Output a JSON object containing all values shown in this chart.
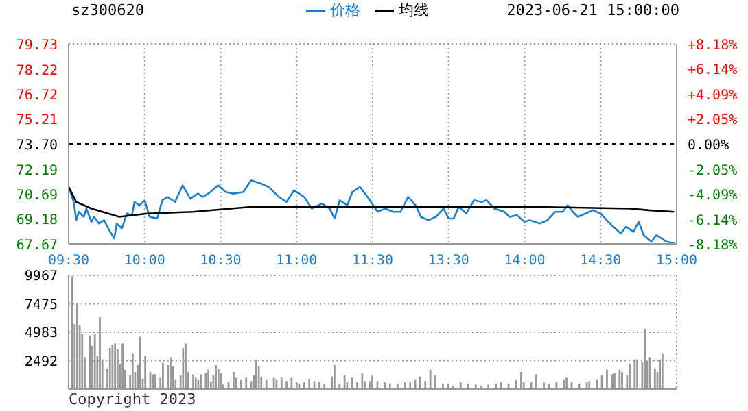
{
  "chart_data": [
    {
      "type": "line",
      "title": "sz300620",
      "annotations": [
        "2023-06-21 15:00:00"
      ],
      "legend": "top",
      "grid": true,
      "marker": "none",
      "categories": [
        "09:30",
        null,
        null,
        null,
        null,
        null,
        null,
        null,
        null,
        null,
        null,
        null,
        null,
        null,
        null,
        null,
        null,
        null,
        null,
        null,
        null,
        null,
        null,
        null,
        null,
        null,
        null,
        null,
        null,
        null,
        "10:00",
        null,
        null,
        null,
        null,
        null,
        null,
        null,
        null,
        null,
        null,
        null,
        null,
        null,
        null,
        null,
        null,
        null,
        null,
        null,
        null,
        null,
        null,
        null,
        null,
        null,
        null,
        null,
        null,
        null,
        "10:30",
        null,
        null,
        null,
        null,
        null,
        null,
        null,
        null,
        null,
        null,
        null,
        null,
        null,
        null,
        null,
        null,
        null,
        null,
        null,
        null,
        null,
        null,
        null,
        null,
        null,
        null,
        null,
        null,
        null,
        "11:00",
        null,
        null,
        null,
        null,
        null,
        null,
        null,
        null,
        null,
        null,
        null,
        null,
        null,
        null,
        null,
        null,
        null,
        null,
        null,
        null,
        null,
        null,
        null,
        null,
        null,
        null,
        null,
        null,
        null,
        "11:30",
        null,
        null,
        null,
        null,
        null,
        null,
        null,
        null,
        null,
        null,
        null,
        null,
        null,
        null,
        null,
        null,
        null,
        null,
        null,
        null,
        null,
        null,
        null,
        null,
        null,
        null,
        null,
        null,
        null,
        "13:30",
        null,
        null,
        null,
        null,
        null,
        null,
        null,
        null,
        null,
        null,
        null,
        null,
        null,
        null,
        null,
        null,
        null,
        null,
        null,
        null,
        null,
        null,
        null,
        null,
        null,
        null,
        null,
        null,
        null,
        "14:00",
        null,
        null,
        null,
        null,
        null,
        null,
        null,
        null,
        null,
        null,
        null,
        null,
        null,
        null,
        null,
        null,
        null,
        null,
        null,
        null,
        null,
        null,
        null,
        null,
        null,
        null,
        null,
        null,
        null,
        "14:30",
        null,
        null,
        null,
        null,
        null,
        null,
        null,
        null,
        null,
        null,
        null,
        null,
        null,
        null,
        null,
        null,
        null,
        null,
        null,
        null,
        null,
        null,
        null,
        null,
        null,
        null,
        null,
        null,
        null,
        "15:00"
      ],
      "ylim": [
        67.67,
        79.73
      ],
      "yticks": [
        67.67,
        69.18,
        70.69,
        72.19,
        {
          "value": 73.7,
          "label": "73.70"
        },
        75.21,
        76.72,
        78.22,
        79.73
      ],
      "y2lim": [
        -8.18,
        8.18
      ],
      "y2ticks": [
        {
          "value": -8.18,
          "label": "-8.18%"
        },
        {
          "value": -6.14,
          "label": "-6.14%"
        },
        {
          "value": -4.09,
          "label": "-4.09%"
        },
        {
          "value": -2.05,
          "label": "-2.05%"
        },
        {
          "value": 0,
          "label": "0.00%"
        },
        {
          "value": 2.05,
          "label": "+2.05%"
        },
        {
          "value": 4.09,
          "label": "+4.09%"
        },
        {
          "value": 6.14,
          "label": "+6.14%"
        },
        {
          "value": 8.18,
          "label": "+8.18%"
        }
      ],
      "ref_lines": [
        {
          "axis": "y",
          "value": 73.7,
          "color": "#000000",
          "line_style": "dashed"
        }
      ],
      "series": [
        {
          "name": "价格",
          "color": "#1a7fcf",
          "values": [
            71.1,
            null,
            70.2,
            69.1,
            69.6,
            null,
            69.3,
            69.8,
            null,
            69.0,
            69.3,
            null,
            68.9,
            null,
            69.1,
            null,
            68.5,
            null,
            68.0,
            68.9,
            null,
            68.6,
            null,
            69.5,
            null,
            69.4,
            70.2,
            null,
            70.0,
            null,
            70.3,
            null,
            69.3,
            null,
            null,
            69.2,
            null,
            70.3,
            null,
            70.5,
            null,
            null,
            70.2,
            null,
            null,
            71.2,
            null,
            null,
            70.4,
            null,
            null,
            70.7,
            null,
            70.5,
            null,
            null,
            70.8,
            null,
            null,
            71.2,
            null,
            null,
            70.8,
            null,
            null,
            70.7,
            null,
            null,
            null,
            70.8,
            null,
            null,
            71.5,
            null,
            null,
            null,
            71.3,
            null,
            null,
            71.1,
            null,
            null,
            null,
            70.5,
            null,
            null,
            70.2,
            null,
            null,
            70.9,
            null,
            null,
            null,
            70.5,
            null,
            null,
            69.8,
            null,
            null,
            null,
            70.1,
            null,
            null,
            69.8,
            null,
            69.2,
            null,
            70.3,
            null,
            null,
            70.0,
            null,
            70.8,
            null,
            null,
            71.1,
            null,
            null,
            70.5,
            null,
            null,
            null,
            69.6,
            null,
            null,
            69.8,
            null,
            null,
            69.6,
            null,
            null,
            69.6,
            null,
            null,
            70.5,
            null,
            null,
            70.0,
            null,
            69.3,
            null,
            null,
            69.1,
            null,
            null,
            69.3,
            null,
            null,
            69.8,
            null,
            69.2,
            null,
            69.2,
            null,
            69.9,
            null,
            null,
            69.5,
            null,
            null,
            70.3,
            null,
            null,
            70.2,
            null,
            70.3,
            null,
            null,
            69.8,
            null,
            null,
            null,
            69.6,
            null,
            69.3,
            null,
            null,
            69.4,
            null,
            null,
            69.0,
            null,
            69.1,
            null,
            null,
            null,
            68.9,
            null,
            null,
            69.1,
            null,
            null,
            69.6,
            null,
            null,
            69.6,
            null,
            70.0,
            null,
            69.6,
            null,
            69.3,
            null,
            null,
            69.5,
            null,
            null,
            69.7,
            null,
            null,
            69.5,
            null,
            null,
            69.0,
            null,
            68.7,
            null,
            null,
            68.3,
            null,
            68.7,
            null,
            null,
            68.4,
            null,
            69.0,
            null,
            68.2,
            null,
            null,
            67.8,
            null,
            68.2,
            null,
            68.0,
            null,
            67.8,
            null,
            null,
            67.7,
            null
          ]
        },
        {
          "name": "均线",
          "color": "#000000",
          "values": [
            71.1,
            null,
            null,
            70.2,
            null,
            null,
            null,
            null,
            null,
            69.8,
            null,
            null,
            null,
            null,
            null,
            null,
            null,
            null,
            null,
            null,
            69.3,
            null,
            null,
            null,
            null,
            null,
            null,
            null,
            null,
            null,
            null,
            69.5,
            null,
            null,
            null,
            null,
            null,
            null,
            null,
            null,
            null,
            null,
            null,
            null,
            null,
            null,
            null,
            null,
            null,
            69.6,
            null,
            null,
            null,
            null,
            null,
            null,
            null,
            null,
            null,
            null,
            null,
            null,
            null,
            null,
            null,
            null,
            null,
            null,
            null,
            null,
            null,
            null,
            69.9,
            null,
            null,
            null,
            null,
            null,
            null,
            null,
            null,
            null,
            null,
            null,
            null,
            null,
            null,
            null,
            null,
            null,
            null,
            null,
            null,
            null,
            null,
            null,
            null,
            null,
            null,
            null,
            null,
            null,
            null,
            null,
            null,
            null,
            null,
            null,
            null,
            null,
            null,
            null,
            null,
            null,
            null,
            null,
            null,
            null,
            null,
            null,
            null,
            null,
            null,
            null,
            null,
            null,
            null,
            null,
            null,
            null,
            null,
            null,
            null,
            null,
            null,
            null,
            null,
            null,
            null,
            null,
            null,
            null,
            null,
            null,
            null,
            null,
            null,
            null,
            null,
            null,
            null,
            null,
            null,
            null,
            null,
            null,
            null,
            null,
            null,
            null,
            null,
            null,
            null,
            null,
            null,
            null,
            null,
            null,
            null,
            null,
            null,
            null,
            null,
            null,
            null,
            null,
            null,
            null,
            null,
            null,
            null,
            null,
            null,
            null,
            null,
            69.9,
            null,
            null,
            null,
            null,
            null,
            null,
            null,
            null,
            null,
            null,
            null,
            null,
            null,
            null,
            null,
            null,
            null,
            null,
            null,
            null,
            null,
            null,
            null,
            null,
            null,
            null,
            null,
            null,
            null,
            null,
            null,
            null,
            null,
            null,
            null,
            null,
            69.8,
            null,
            null,
            null,
            null,
            null,
            null,
            69.7,
            null,
            null,
            null,
            null,
            null,
            null,
            null,
            null,
            null,
            69.6,
            null
          ]
        }
      ]
    },
    {
      "type": "bar",
      "annotations": [
        "Copyright 2023"
      ],
      "grid": true,
      "tick_labels": "y",
      "categories": [
        null,
        null,
        null,
        null,
        null,
        null,
        null,
        null,
        null,
        null,
        null,
        null,
        null,
        null,
        null,
        null,
        null,
        null,
        null,
        null,
        null,
        null,
        null,
        null,
        null,
        null,
        null,
        null,
        null,
        null,
        null,
        null,
        null,
        null,
        null,
        null,
        null,
        null,
        null,
        null,
        null,
        null,
        null,
        null,
        null,
        null,
        null,
        null,
        null,
        null,
        null,
        null,
        null,
        null,
        null,
        null,
        null,
        null,
        null,
        null,
        null,
        null,
        null,
        null,
        null,
        null,
        null,
        null,
        null,
        null,
        null,
        null,
        null,
        null,
        null,
        null,
        null,
        null,
        null,
        null,
        null,
        null,
        null,
        null,
        null,
        null,
        null,
        null,
        null,
        null,
        null,
        null,
        null,
        null,
        null,
        null,
        null,
        null,
        null,
        null,
        null,
        null,
        null,
        null,
        null,
        null,
        null,
        null,
        null,
        null,
        null,
        null,
        null,
        null,
        null,
        null,
        null,
        null,
        null,
        null,
        null,
        null,
        null,
        null,
        null,
        null,
        null,
        null,
        null,
        null,
        null,
        null,
        null,
        null,
        null,
        null,
        null,
        null,
        null,
        null,
        null,
        null,
        null,
        null,
        null,
        null,
        null,
        null,
        null,
        null,
        null,
        null,
        null,
        null,
        null,
        null,
        null,
        null,
        null,
        null,
        null,
        null,
        null,
        null,
        null,
        null,
        null,
        null,
        null,
        null,
        null,
        null,
        null,
        null,
        null,
        null,
        null,
        null,
        null,
        null,
        null,
        null,
        null,
        null,
        null,
        null,
        null,
        null,
        null,
        null,
        null,
        null,
        null,
        null,
        null,
        null,
        null,
        null,
        null,
        null,
        null,
        null,
        null,
        null,
        null,
        null,
        null,
        null,
        null,
        null,
        null,
        null,
        null,
        null,
        null,
        null,
        null,
        null,
        null,
        null,
        null,
        null,
        null,
        null,
        null,
        null,
        null,
        null,
        null,
        null,
        null,
        null,
        null,
        null,
        null,
        null,
        null,
        null,
        null,
        null,
        null
      ],
      "ylim": [
        0,
        9967
      ],
      "yticks": [
        2492,
        4983,
        7475,
        9967
      ],
      "series": [
        {
          "color": "#999999",
          "values": [
            null,
            9900,
            5700,
            7500,
            5600,
            4800,
            2800,
            null,
            4700,
            3800,
            4800,
            2900,
            6300,
            2600,
            null,
            1800,
            3600,
            3900,
            4000,
            3500,
            2200,
            4000,
            1700,
            null,
            1200,
            3100,
            1500,
            2100,
            4600,
            900,
            2900,
            null,
            1500,
            1300,
            1300,
            null,
            1000,
            2300,
            null,
            2100,
            2800,
            2000,
            800,
            null,
            1200,
            3600,
            4000,
            1500,
            null,
            1300,
            1000,
            800,
            1300,
            null,
            1400,
            1700,
            600,
            1200,
            2100,
            1800,
            1400,
            400,
            null,
            600,
            null,
            1500,
            1000,
            null,
            800,
            null,
            1000,
            null,
            700,
            1200,
            2600,
            2000,
            1100,
            null,
            800,
            null,
            null,
            1000,
            800,
            null,
            1000,
            null,
            700,
            null,
            1000,
            null,
            600,
            500,
            null,
            600,
            null,
            900,
            null,
            700,
            null,
            600,
            null,
            500,
            null,
            null,
            1100,
            2100,
            null,
            500,
            null,
            1200,
            600,
            null,
            1000,
            null,
            600,
            null,
            1400,
            700,
            null,
            700,
            1200,
            null,
            700,
            null,
            null,
            600,
            null,
            500,
            null,
            null,
            500,
            null,
            null,
            600,
            null,
            600,
            null,
            800,
            null,
            1100,
            null,
            700,
            null,
            1700,
            null,
            1200,
            null,
            null,
            500,
            null,
            500,
            null,
            300,
            null,
            null,
            600,
            null,
            null,
            500,
            null,
            null,
            400,
            null,
            300,
            null,
            null,
            400,
            null,
            null,
            500,
            null,
            600,
            null,
            null,
            500,
            null,
            null,
            800,
            null,
            1500,
            600,
            null,
            null,
            600,
            null,
            1300,
            null,
            null,
            600,
            null,
            500,
            null,
            null,
            600,
            null,
            null,
            800,
            1000,
            null,
            600,
            null,
            null,
            500,
            null,
            null,
            600,
            700,
            null,
            null,
            800,
            null,
            1200,
            null,
            1700,
            null,
            1300,
            1400,
            null,
            1700,
            1500,
            null,
            1200,
            2200,
            null,
            2600,
            2600,
            null,
            2400,
            5300,
            2500,
            2800,
            null,
            1800,
            1500,
            2600,
            3100,
            null,
            null,
            null,
            null,
            null
          ]
        }
      ]
    }
  ]
}
